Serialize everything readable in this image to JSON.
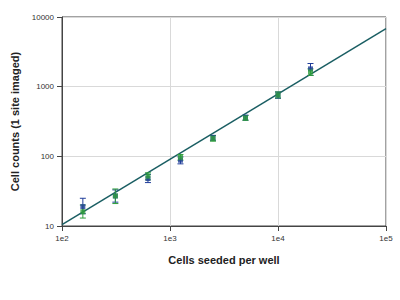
{
  "chart_data": {
    "type": "scatter",
    "x_label": "Cells seeded per well",
    "y_label": "Cell counts (1 site imaged)",
    "log": true,
    "grid": true,
    "marker": "rect",
    "x": [
      156,
      312,
      625,
      1250,
      2500,
      5000,
      10000,
      20000
    ],
    "xlim": [
      100,
      100000
    ],
    "xticks": [
      {
        "value": 100,
        "label": "1e2"
      },
      {
        "value": 1000,
        "label": "1e3"
      },
      {
        "value": 10000,
        "label": "1e4"
      },
      {
        "value": 100000,
        "label": "1e5"
      }
    ],
    "ylim": [
      10,
      10000
    ],
    "yticks": [
      10,
      100,
      1000,
      10000
    ],
    "series": [
      {
        "color": "#1f3c99",
        "values": [
          19,
          27,
          48,
          88,
          185,
          360,
          760,
          1800
        ],
        "error_low": [
          15,
          22,
          42,
          78,
          170,
          330,
          680,
          1450
        ],
        "error_high": [
          25,
          33,
          55,
          98,
          200,
          390,
          840,
          2150
        ]
      },
      {
        "color": "#2e9e3a",
        "values": [
          16,
          27,
          52,
          97,
          180,
          355,
          760,
          1620
        ],
        "error_low": [
          13,
          21,
          46,
          88,
          165,
          330,
          690,
          1450
        ],
        "error_high": [
          20,
          34,
          58,
          106,
          198,
          385,
          840,
          1800
        ]
      },
      {
        "type": "line",
        "color": "#1a5e63",
        "x": [
          100,
          100000
        ],
        "values": [
          10.5,
          6800
        ]
      }
    ]
  }
}
